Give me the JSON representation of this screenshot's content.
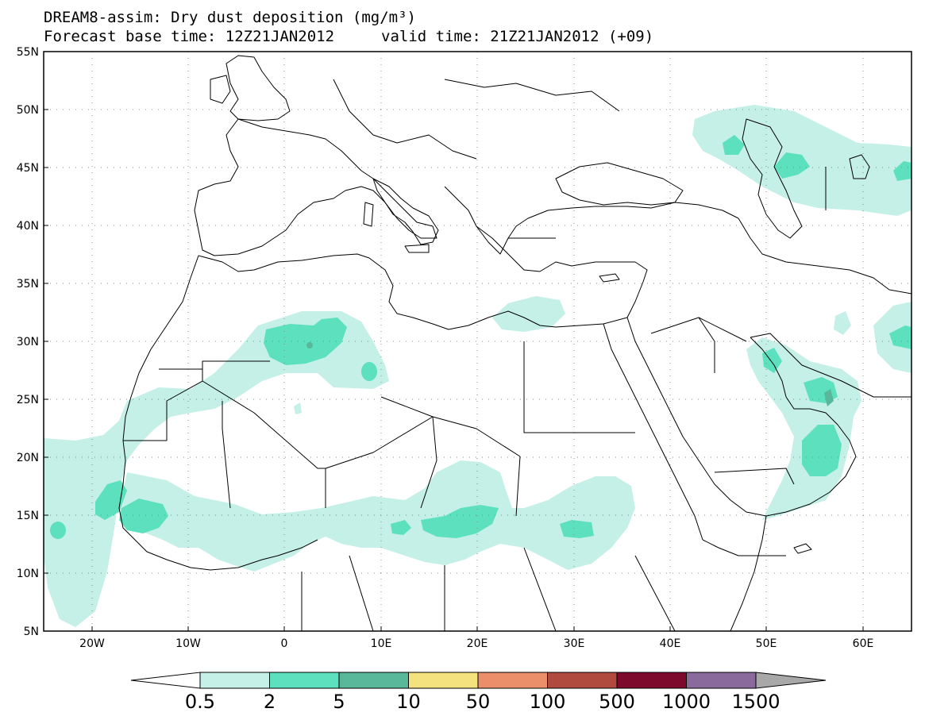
{
  "title_line1": "DREAM8-assim: Dry dust deposition (mg/m³)",
  "title_line2_left": "Forecast base time: 12Z21JAN2012",
  "title_line2_right": "valid time: 21Z21JAN2012 (+09)",
  "map": {
    "lon_range": [
      -25,
      65
    ],
    "lat_range": [
      5,
      55
    ],
    "grid": "dotted",
    "lat_labels": [
      "55N",
      "50N",
      "45N",
      "40N",
      "35N",
      "30N",
      "25N",
      "20N",
      "15N",
      "10N",
      "5N"
    ],
    "lon_labels": [
      "20W",
      "10W",
      "0",
      "10E",
      "20E",
      "30E",
      "40E",
      "50E",
      "60E"
    ]
  },
  "colorbar": {
    "labels": [
      "0.5",
      "2",
      "5",
      "10",
      "50",
      "100",
      "500",
      "1000",
      "1500"
    ],
    "colors": [
      "#c4f0e8",
      "#5ce0bd",
      "#5ab89a",
      "#f4e27e",
      "#ea8f6a",
      "#b04a3f",
      "#7d0a2c",
      "#8a6a9c"
    ],
    "low_arrow_color": "#ffffff",
    "high_arrow_color": "#a8a8a8"
  }
}
